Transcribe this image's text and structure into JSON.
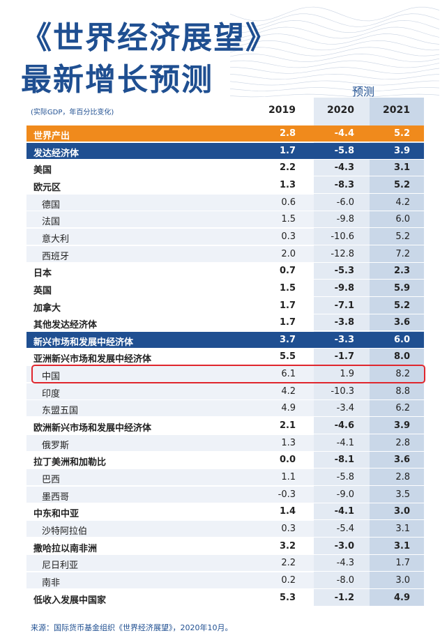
{
  "header": {
    "title_line1": "《世界经济展望》",
    "title_line2": "最新增长预测",
    "forecast_label": "预测",
    "unit": "(实际GDP，年百分比变化)",
    "years": [
      "2019",
      "2020",
      "2021"
    ]
  },
  "table": {
    "rows": [
      {
        "name": "世界产出",
        "style": "orange",
        "values": [
          "2.8",
          "-4.4",
          "5.2"
        ]
      },
      {
        "name": "发达经济体",
        "style": "blue",
        "values": [
          "1.7",
          "-5.8",
          "3.9"
        ]
      },
      {
        "name": "美国",
        "style": "bold",
        "values": [
          "2.2",
          "-4.3",
          "3.1"
        ]
      },
      {
        "name": "欧元区",
        "style": "bold",
        "values": [
          "1.3",
          "-8.3",
          "5.2"
        ]
      },
      {
        "name": "德国",
        "style": "sub",
        "values": [
          "0.6",
          "-6.0",
          "4.2"
        ]
      },
      {
        "name": "法国",
        "style": "sub",
        "values": [
          "1.5",
          "-9.8",
          "6.0"
        ]
      },
      {
        "name": "意大利",
        "style": "sub",
        "values": [
          "0.3",
          "-10.6",
          "5.2"
        ]
      },
      {
        "name": "西班牙",
        "style": "sub",
        "values": [
          "2.0",
          "-12.8",
          "7.2"
        ]
      },
      {
        "name": "日本",
        "style": "bold",
        "values": [
          "0.7",
          "-5.3",
          "2.3"
        ]
      },
      {
        "name": "英国",
        "style": "bold",
        "values": [
          "1.5",
          "-9.8",
          "5.9"
        ]
      },
      {
        "name": "加拿大",
        "style": "bold",
        "values": [
          "1.7",
          "-7.1",
          "5.2"
        ]
      },
      {
        "name": "其他发达经济体",
        "style": "bold",
        "values": [
          "1.7",
          "-3.8",
          "3.6"
        ]
      },
      {
        "name": "新兴市场和发展中经济体",
        "style": "blue",
        "values": [
          "3.7",
          "-3.3",
          "6.0"
        ]
      },
      {
        "name": "亚洲新兴市场和发展中经济体",
        "style": "bold",
        "values": [
          "5.5",
          "-1.7",
          "8.0"
        ]
      },
      {
        "name": "中国",
        "style": "sub",
        "values": [
          "6.1",
          "1.9",
          "8.2"
        ]
      },
      {
        "name": "印度",
        "style": "sub",
        "values": [
          "4.2",
          "-10.3",
          "8.8"
        ]
      },
      {
        "name": "东盟五国",
        "style": "sub",
        "values": [
          "4.9",
          "-3.4",
          "6.2"
        ]
      },
      {
        "name": "欧洲新兴市场和发展中经济体",
        "style": "bold",
        "values": [
          "2.1",
          "-4.6",
          "3.9"
        ]
      },
      {
        "name": "俄罗斯",
        "style": "sub",
        "values": [
          "1.3",
          "-4.1",
          "2.8"
        ]
      },
      {
        "name": "拉丁美洲和加勒比",
        "style": "bold",
        "values": [
          "0.0",
          "-8.1",
          "3.6"
        ]
      },
      {
        "name": "巴西",
        "style": "sub",
        "values": [
          "1.1",
          "-5.8",
          "2.8"
        ]
      },
      {
        "name": "墨西哥",
        "style": "sub",
        "values": [
          "-0.3",
          "-9.0",
          "3.5"
        ]
      },
      {
        "name": "中东和中亚",
        "style": "bold",
        "values": [
          "1.4",
          "-4.1",
          "3.0"
        ]
      },
      {
        "name": "沙特阿拉伯",
        "style": "sub",
        "values": [
          "0.3",
          "-5.4",
          "3.1"
        ]
      },
      {
        "name": "撒哈拉以南非洲",
        "style": "bold",
        "values": [
          "3.2",
          "-3.0",
          "3.1"
        ]
      },
      {
        "name": "尼日利亚",
        "style": "sub",
        "values": [
          "2.2",
          "-4.3",
          "1.7"
        ]
      },
      {
        "name": "南非",
        "style": "sub",
        "values": [
          "0.2",
          "-8.0",
          "3.0"
        ]
      },
      {
        "name": "低收入发展中国家",
        "style": "bold",
        "values": [
          "5.3",
          "-1.2",
          "4.9"
        ]
      }
    ]
  },
  "footer": {
    "source": "来源：国际货币基金组织《世界经济展望》，2020年10月。"
  }
}
